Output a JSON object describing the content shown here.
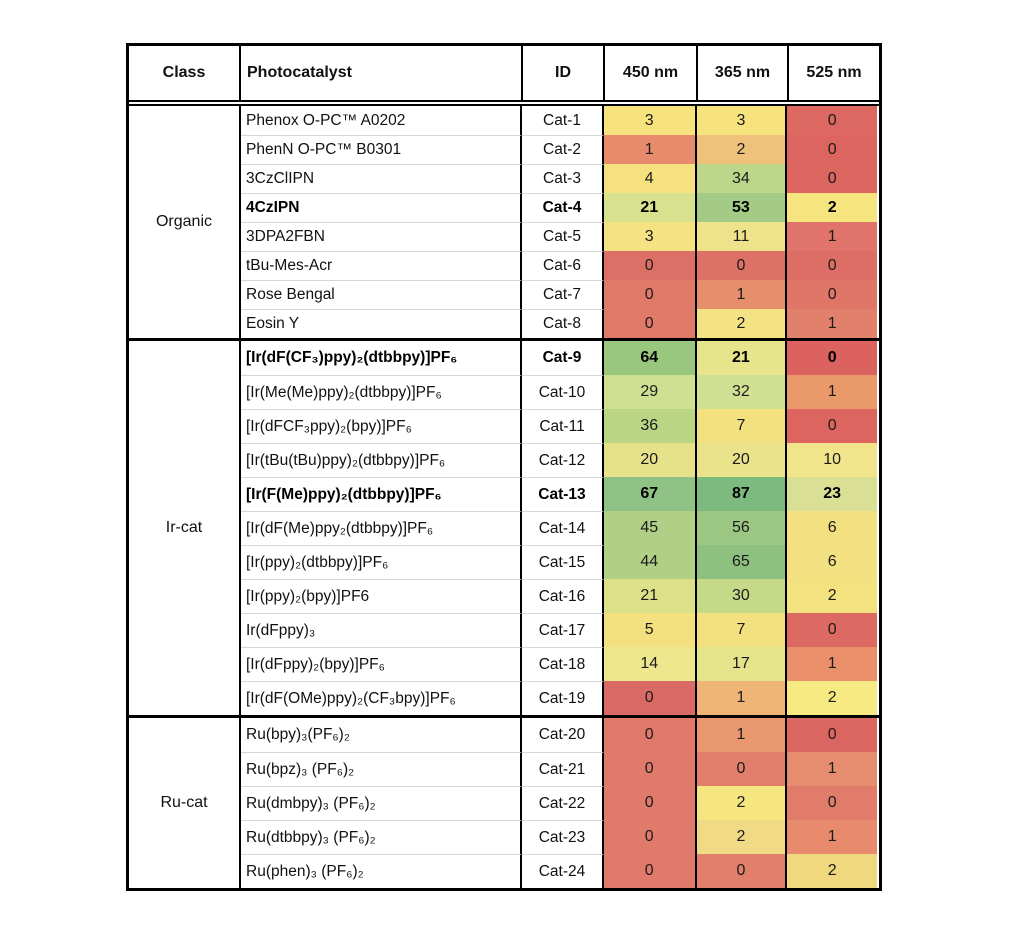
{
  "chart_data": {
    "type": "heatmap",
    "header": [
      "Class",
      "Photocatalyst",
      "ID",
      "450 nm",
      "365 nm",
      "525 nm"
    ],
    "wavelength_columns": [
      "450 nm",
      "365 nm",
      "525 nm"
    ],
    "color_scale": {
      "low": "#DC6560",
      "mid": "#F5E27F",
      "high": "#7DBA80"
    },
    "groups": [
      {
        "class": "Organic",
        "rows": [
          {
            "photocatalyst": "Phenox O-PC™ A0202",
            "id": "Cat-1",
            "bold": false,
            "values": [
              3,
              3,
              0
            ],
            "colors": [
              "#F6E37E",
              "#F6E37E",
              "#DD6761"
            ]
          },
          {
            "photocatalyst": "PhenN O-PC™ B0301",
            "id": "Cat-2",
            "bold": false,
            "values": [
              1,
              2,
              0
            ],
            "colors": [
              "#E78B6C",
              "#F0C17B",
              "#DC6560"
            ]
          },
          {
            "photocatalyst": "3CzClIPN",
            "id": "Cat-3",
            "bold": false,
            "values": [
              4,
              34,
              0
            ],
            "colors": [
              "#F5E27F",
              "#BCD78A",
              "#DC6560"
            ]
          },
          {
            "photocatalyst": "4CzIPN",
            "id": "Cat-4",
            "bold": true,
            "values": [
              21,
              53,
              2
            ],
            "colors": [
              "#D8E18D",
              "#A4CB86",
              "#F6E57E"
            ]
          },
          {
            "photocatalyst": "3DPA2FBN",
            "id": "Cat-5",
            "bold": false,
            "values": [
              3,
              11,
              1
            ],
            "colors": [
              "#F5E383",
              "#EEE28A",
              "#E0746A"
            ]
          },
          {
            "photocatalyst": "tBu-Mes-Acr",
            "id": "Cat-6",
            "bold": false,
            "values": [
              0,
              0,
              0
            ],
            "colors": [
              "#DD7066",
              "#DE7166",
              "#DC6E65"
            ]
          },
          {
            "photocatalyst": "Rose Bengal",
            "id": "Cat-7",
            "bold": false,
            "values": [
              0,
              1,
              0
            ],
            "colors": [
              "#E07A68",
              "#E78F6D",
              "#DF7667"
            ]
          },
          {
            "photocatalyst": "Eosin Y",
            "id": "Cat-8",
            "bold": false,
            "values": [
              0,
              2,
              1
            ],
            "colors": [
              "#E07A68",
              "#F3E385",
              "#E2816B"
            ]
          }
        ]
      },
      {
        "class": "Ir-cat",
        "rows": [
          {
            "photocatalyst": "[Ir(dF(CF₃)ppy)₂(dtbbpy)]PF₆",
            "id": "Cat-9",
            "bold": true,
            "values": [
              64,
              21,
              0
            ],
            "colors": [
              "#9AC77E",
              "#E7E58C",
              "#DB625E"
            ]
          },
          {
            "photocatalyst": "[Ir(Me(Me)ppy)₂(dtbbpy)]PF₆",
            "id": "Cat-10",
            "bold": false,
            "values": [
              29,
              32,
              1
            ],
            "colors": [
              "#CFE092",
              "#D2E094",
              "#EA996A"
            ]
          },
          {
            "photocatalyst": "[Ir(dFCF₃ppy)₂(bpy)]PF₆",
            "id": "Cat-11",
            "bold": false,
            "values": [
              36,
              7,
              0
            ],
            "colors": [
              "#BAD584",
              "#F3E17F",
              "#DC6560"
            ]
          },
          {
            "photocatalyst": "[Ir(tBu(tBu)ppy)₂(dtbbpy)]PF₆",
            "id": "Cat-12",
            "bold": false,
            "values": [
              20,
              20,
              10
            ],
            "colors": [
              "#E6E28A",
              "#EAE38B",
              "#F1E48A"
            ]
          },
          {
            "photocatalyst": "[Ir(F(Me)ppy)₂(dtbbpy)]PF₆",
            "id": "Cat-13",
            "bold": true,
            "values": [
              67,
              87,
              23
            ],
            "colors": [
              "#90C286",
              "#7DBA80",
              "#D9E095"
            ]
          },
          {
            "photocatalyst": "[Ir(dF(Me)ppy₂(dtbbpy)]PF₆",
            "id": "Cat-14",
            "bold": false,
            "values": [
              45,
              56,
              6
            ],
            "colors": [
              "#AFD086",
              "#9CC782",
              "#F3E181"
            ]
          },
          {
            "photocatalyst": "[Ir(ppy)₂(dtbbpy)]PF₆",
            "id": "Cat-15",
            "bold": false,
            "values": [
              44,
              65,
              6
            ],
            "colors": [
              "#B0D085",
              "#8EC07F",
              "#F3E181"
            ]
          },
          {
            "photocatalyst": "[Ir(ppy)₂(bpy)]PF6",
            "id": "Cat-16",
            "bold": false,
            "values": [
              21,
              30,
              2
            ],
            "colors": [
              "#DCE088",
              "#C6D988",
              "#F4E17F"
            ]
          },
          {
            "photocatalyst": "Ir(dFppy)₃",
            "id": "Cat-17",
            "bold": false,
            "values": [
              5,
              7,
              0
            ],
            "colors": [
              "#F3E07E",
              "#F3E07E",
              "#DD6A62"
            ]
          },
          {
            "photocatalyst": "[Ir(dFppy)₂(bpy)]PF₆",
            "id": "Cat-18",
            "bold": false,
            "values": [
              14,
              17,
              1
            ],
            "colors": [
              "#EEE78D",
              "#E5E48B",
              "#E9906B"
            ]
          },
          {
            "photocatalyst": "[Ir(dF(OMe)ppy)₂(CF₃bpy)]PF₆",
            "id": "Cat-19",
            "bold": false,
            "values": [
              0,
              1,
              2
            ],
            "colors": [
              "#DA6A66",
              "#EFB576",
              "#F7EA82"
            ]
          }
        ]
      },
      {
        "class": "Ru-cat",
        "rows": [
          {
            "photocatalyst": "Ru(bpy)₃(PF₆)₂",
            "id": "Cat-20",
            "bold": false,
            "values": [
              0,
              1,
              0
            ],
            "colors": [
              "#E0796A",
              "#E9976F",
              "#DB6661"
            ]
          },
          {
            "photocatalyst": "Ru(bpz)₃ (PF₆)₂",
            "id": "Cat-21",
            "bold": false,
            "values": [
              0,
              0,
              1
            ],
            "colors": [
              "#E07A6B",
              "#E27E6C",
              "#E68D70"
            ]
          },
          {
            "photocatalyst": "Ru(dmbpy)₃ (PF₆)₂",
            "id": "Cat-22",
            "bold": false,
            "values": [
              0,
              2,
              0
            ],
            "colors": [
              "#E07A6B",
              "#F5E67F",
              "#E17B6A"
            ]
          },
          {
            "photocatalyst": "Ru(dtbbpy)₃ (PF₆)₂",
            "id": "Cat-23",
            "bold": false,
            "values": [
              0,
              2,
              1
            ],
            "colors": [
              "#E07A6B",
              "#F1DA86",
              "#E78A6E"
            ]
          },
          {
            "photocatalyst": "Ru(phen)₃ (PF₆)₂",
            "id": "Cat-24",
            "bold": false,
            "values": [
              0,
              0,
              2
            ],
            "colors": [
              "#E07A6B",
              "#E27F6B",
              "#F0D87F"
            ]
          }
        ]
      }
    ]
  }
}
